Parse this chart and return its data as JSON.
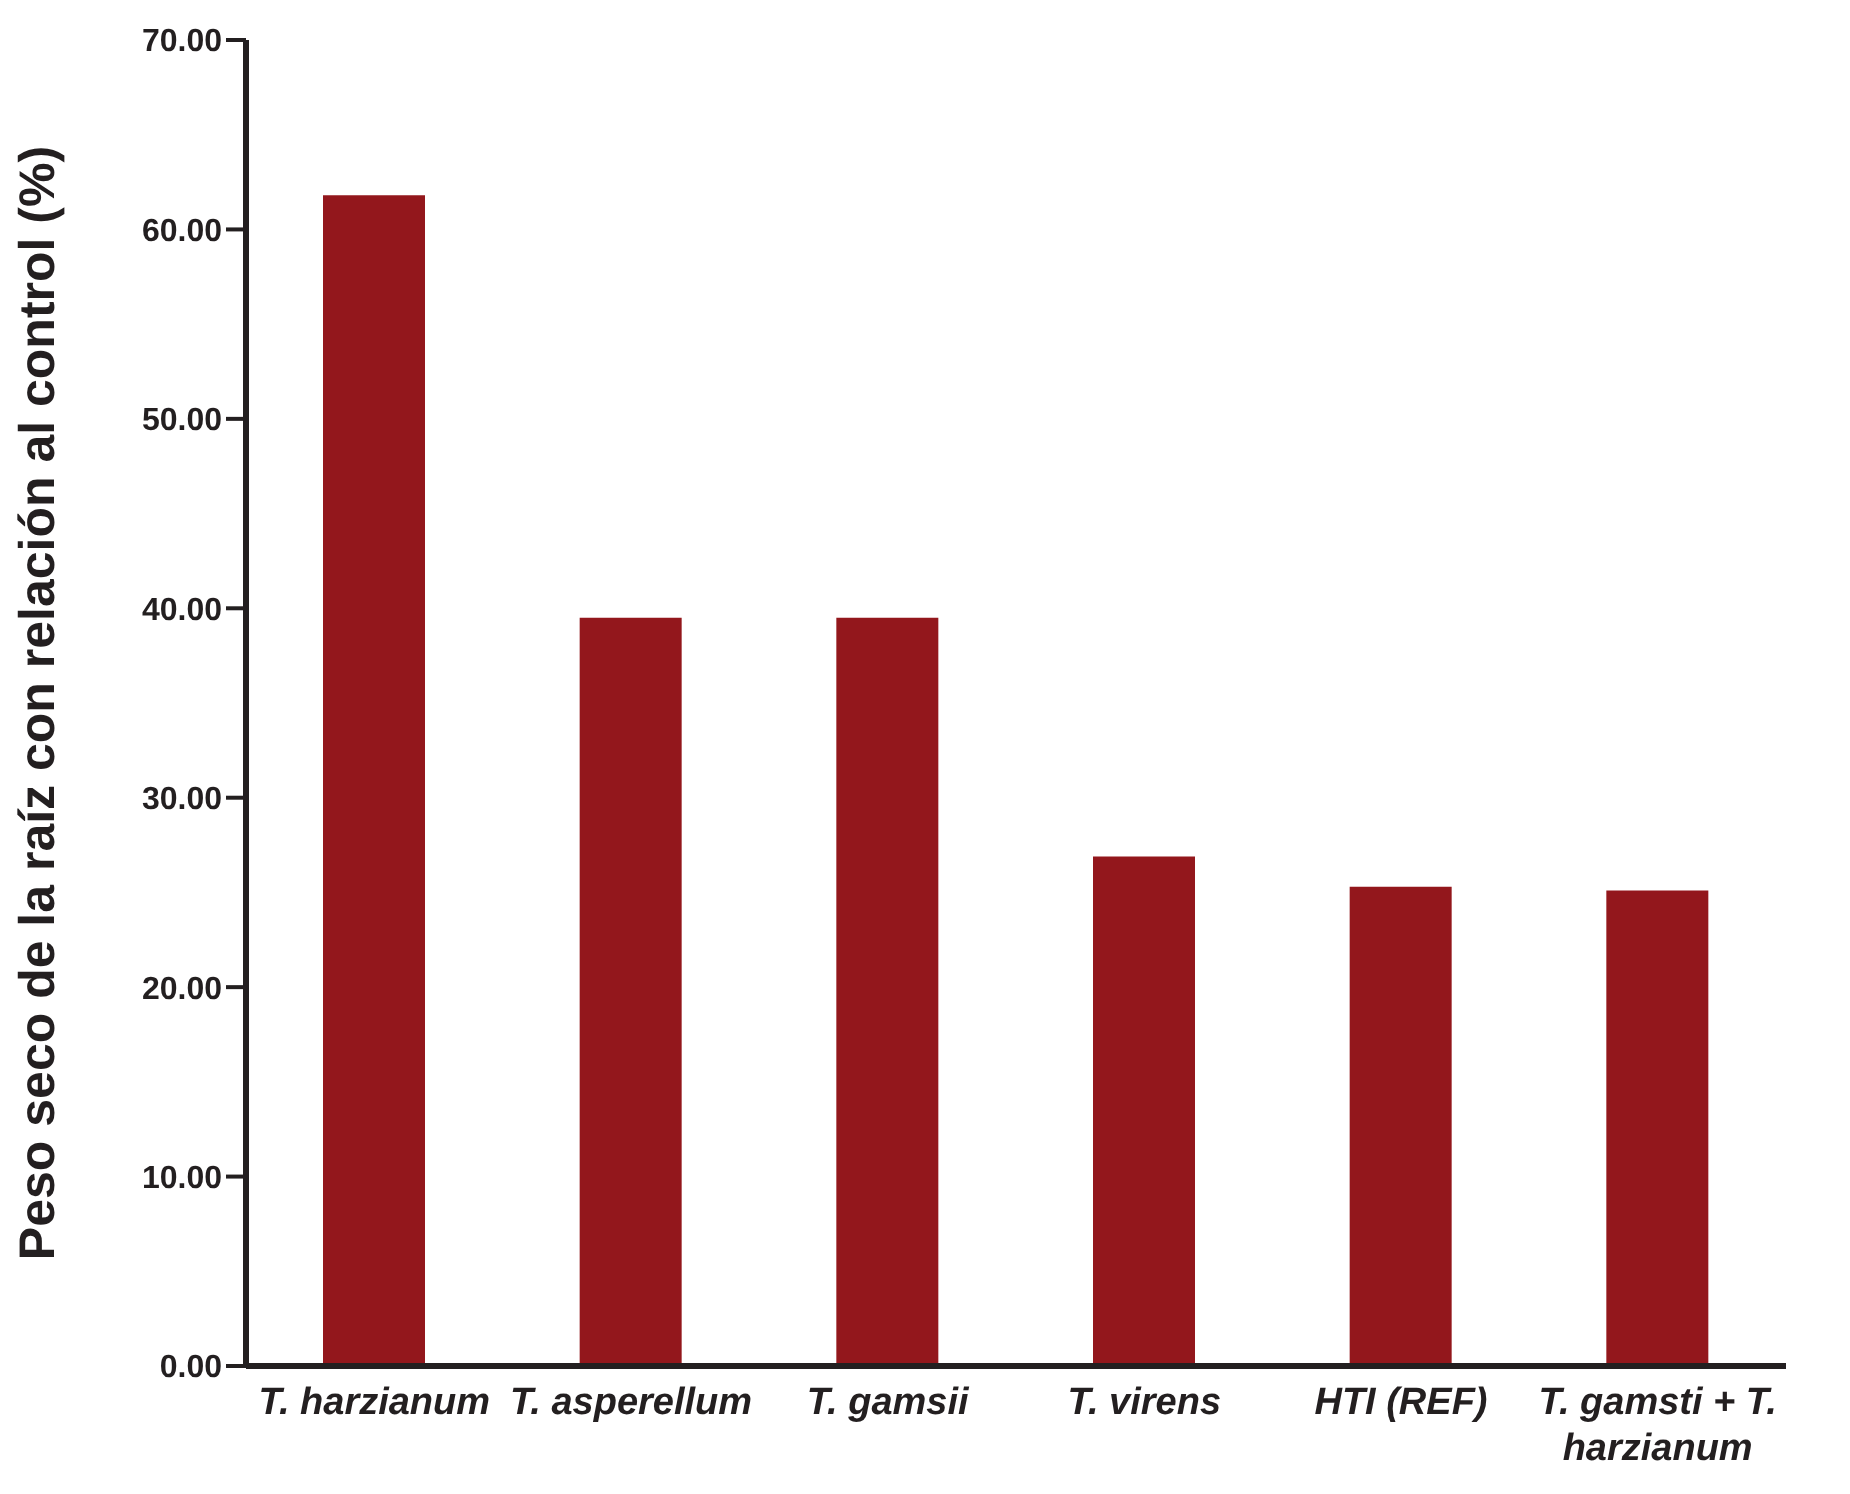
{
  "chart_data": {
    "type": "bar",
    "ylabel": "Peso seco de la raíz con relación al control (%)",
    "categories": [
      "T. harzianum",
      "T. asperellum",
      "T. gamsii",
      "T. virens",
      "HTI (REF)",
      "T. gamsti + T. harzianum"
    ],
    "values": [
      61.8,
      39.5,
      39.5,
      26.9,
      25.3,
      25.1
    ],
    "color": "#93171c",
    "ylim": [
      0,
      70
    ],
    "yticks": [
      {
        "value": 0,
        "label": "0.00"
      },
      {
        "value": 10,
        "label": "10.00"
      },
      {
        "value": 20,
        "label": "20.00"
      },
      {
        "value": 30,
        "label": "30.00"
      },
      {
        "value": 40,
        "label": "40.00"
      },
      {
        "value": 50,
        "label": "50.00"
      },
      {
        "value": 60,
        "label": "60.00"
      },
      {
        "value": 70,
        "label": "70.00"
      }
    ],
    "grid": false
  }
}
